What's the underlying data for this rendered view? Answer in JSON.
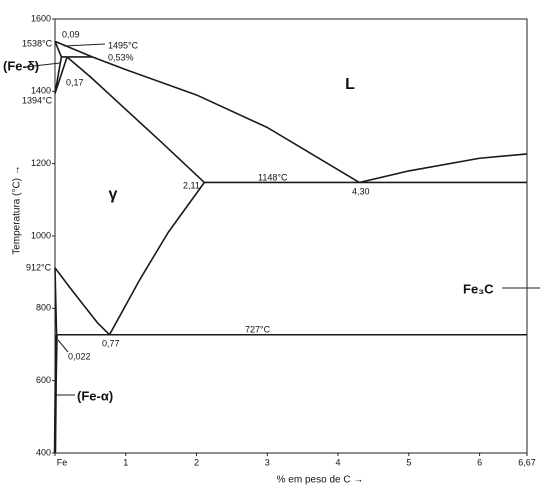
{
  "chart_data": {
    "type": "line",
    "xlabel": "% em peso de C  →",
    "ylabel": "Temperatura (°C)  →",
    "xlim": [
      0,
      6.67
    ],
    "ylim": [
      400,
      1600
    ],
    "xticks": [
      {
        "value": 0,
        "label": "Fe"
      },
      1,
      2,
      3,
      4,
      5,
      6,
      {
        "value": 6.67,
        "label": "6,67"
      }
    ],
    "yticks": [
      400,
      600,
      800,
      1000,
      1200,
      1400,
      1600
    ],
    "series": [
      {
        "color": "#1a1a1a",
        "x": [
          0,
          0.53,
          1,
          2,
          3,
          4.3,
          5,
          6,
          6.67
        ],
        "values": [
          1538,
          1495,
          1460,
          1390,
          1300,
          1148,
          1180,
          1215,
          1227
        ]
      },
      {
        "color": "#1a1a1a",
        "x": [
          0.17,
          0.5,
          1,
          1.5,
          2.11
        ],
        "values": [
          1495,
          1440,
          1350,
          1260,
          1148
        ]
      },
      {
        "color": "#1a1a1a",
        "x": [
          0,
          0.09
        ],
        "values": [
          1538,
          1495
        ]
      },
      {
        "color": "#1a1a1a",
        "x": [
          0,
          0.09
        ],
        "values": [
          1394,
          1495
        ]
      },
      {
        "color": "#1a1a1a",
        "x": [
          0,
          0.17
        ],
        "values": [
          1394,
          1495
        ]
      },
      {
        "color": "#1a1a1a",
        "x": [
          0.09,
          0.53
        ],
        "values": [
          1495,
          1495
        ]
      },
      {
        "color": "#1a1a1a",
        "x": [
          2.11,
          6.67
        ],
        "values": [
          1148,
          1148
        ]
      },
      {
        "color": "#1a1a1a",
        "x": [
          0,
          0.2,
          0.4,
          0.6,
          0.77
        ],
        "values": [
          912,
          860,
          810,
          760,
          727
        ]
      },
      {
        "color": "#1a1a1a",
        "x": [
          0.77,
          1.2,
          1.6,
          2.11
        ],
        "values": [
          727,
          880,
          1010,
          1148
        ]
      },
      {
        "color": "#1a1a1a",
        "x": [
          0.022,
          6.67
        ],
        "values": [
          727,
          727
        ]
      },
      {
        "color": "#1a1a1a",
        "x": [
          0.022,
          0.01,
          0
        ],
        "values": [
          727,
          600,
          400
        ]
      },
      {
        "color": "#1a1a1a",
        "x": [
          0,
          0.022
        ],
        "values": [
          912,
          727
        ]
      }
    ],
    "annotations": [
      "1538°C",
      "0,09",
      "1495°C",
      "0,53%",
      "(Fe-δ)",
      "0,17",
      "1394°C",
      "L",
      "γ",
      "2,11",
      "1148°C",
      "4,30",
      "912°C",
      "Fe₃C",
      "727°C",
      "0,022",
      "0,77",
      "(Fe-α)"
    ]
  }
}
